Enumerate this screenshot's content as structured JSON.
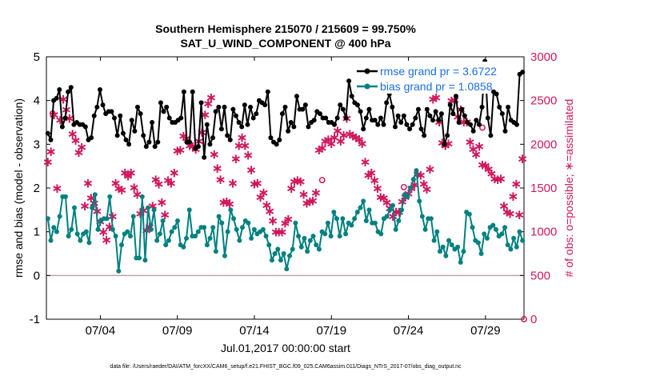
{
  "chart_data": {
    "type": "line",
    "title": "Southern Hemisphere 215070 / 215609 = 99.750%",
    "subtitle": "SAT_U_WIND_COMPONENT @ 400 hPa",
    "xlabel": "Jul.01,2017 00:00:00 start",
    "ylabel": "rmse and bias (model - observation)",
    "y2label": "# of obs: o=possible; ∗=assimilated",
    "footer": "data file: /Users/raeder/DAI/ATM_forcXX/CAM6_setup/f.e21.FHIST_BGC.f09_025.CAM6assim.011/Diags_NTrS_2017-07/obs_diag_output.nc",
    "xlim": [
      0.5,
      31.5
    ],
    "ylim": [
      -1,
      5
    ],
    "y2lim": [
      0,
      3000
    ],
    "xticks": [
      4,
      9,
      14,
      19,
      24,
      29
    ],
    "xticklabels": [
      "07/04",
      "07/09",
      "07/14",
      "07/19",
      "07/24",
      "07/29"
    ],
    "yticks": [
      "-1",
      "0",
      "1",
      "2",
      "3",
      "4",
      "5"
    ],
    "y2ticks": [
      "0",
      "500",
      "1000",
      "1500",
      "2000",
      "2500",
      "3000"
    ],
    "series": [
      {
        "name": "rmse grand pr = 3.6722",
        "color": "#000000",
        "values": [
          3.25,
          3.1,
          4.0,
          4.05,
          4.25,
          3.4,
          3.6,
          4.2,
          4.3,
          3.45,
          3.5,
          3.45,
          3.45,
          3.4,
          3.1,
          3.15,
          3.65,
          3.85,
          4.25,
          3.9,
          3.7,
          3.75,
          3.75,
          3.6,
          3.2,
          3.65,
          3.25,
          3.1,
          3.0,
          3.55,
          3.3,
          3.85,
          3.7,
          3.2,
          2.95,
          3.05,
          3.5,
          2.95,
          3.05,
          3.95,
          3.75,
          3.85,
          3.6,
          3.5,
          3.5,
          3.55,
          3.6,
          4.2,
          3.05,
          3.05,
          4.2,
          2.9,
          2.95,
          3.95,
          2.7,
          3.45,
          3.0,
          3.15,
          3.75,
          3.85,
          3.35,
          3.85,
          3.2,
          3.1,
          3.8,
          3.65,
          3.5,
          3.4,
          3.9,
          3.45,
          3.85,
          3.6,
          3.7,
          4.0,
          3.95,
          3.9,
          4.2,
          3.15,
          3.05,
          3.0,
          3.1,
          3.7,
          3.85,
          3.3,
          3.5,
          3.4,
          4.1,
          3.8,
          3.8,
          3.9,
          3.4,
          3.5,
          3.55,
          3.75,
          3.7,
          3.6,
          3.6,
          3.5,
          3.5,
          3.45,
          3.6,
          3.9,
          3.8,
          3.6,
          4.45,
          4.1,
          3.95,
          3.9,
          3.75,
          3.35,
          3.6,
          3.8,
          3.55,
          3.55,
          3.45,
          3.6,
          3.45,
          3.95,
          4.15,
          3.85,
          3.4,
          3.65,
          3.5,
          3.65,
          3.45,
          3.35,
          3.45,
          3.6,
          3.8,
          3.35,
          3.2,
          3.8,
          3.65,
          3.55,
          3.75,
          3.55,
          3.7,
          3.0,
          3.2,
          3.9,
          3.7,
          4.1,
          3.5,
          3.8,
          3.65,
          3.5,
          3.45,
          3.3,
          3.55,
          3.45,
          3.85,
          4.9,
          3.6,
          3.2,
          4.2,
          4.15,
          3.85,
          3.7,
          3.3,
          3.85,
          3.55,
          3.5,
          3.45,
          4.6,
          4.65
        ]
      },
      {
        "name": "bias grand pr = 1.0858",
        "color": "#008080",
        "values": [
          1.3,
          0.8,
          1.1,
          1.0,
          1.35,
          1.8,
          1.8,
          0.9,
          1.05,
          1.55,
          0.95,
          0.8,
          0.95,
          1.0,
          0.75,
          1.55,
          1.85,
          1.05,
          1.25,
          1.3,
          1.3,
          1.8,
          1.05,
          0.9,
          0.1,
          0.7,
          0.95,
          1.0,
          0.9,
          1.35,
          0.4,
          0.4,
          1.8,
          0.35,
          1.55,
          1.05,
          1.5,
          0.8,
          0.95,
          1.25,
          0.7,
          0.8,
          1.0,
          1.1,
          1.25,
          0.7,
          0.65,
          0.85,
          1.5,
          0.9,
          0.9,
          1.0,
          1.1,
          1.1,
          0.7,
          0.85,
          1.1,
          0.55,
          1.35,
          1.2,
          0.45,
          1.0,
          1.5,
          1.3,
          1.05,
          0.8,
          1.1,
          1.25,
          1.2,
          0.85,
          1.05,
          0.95,
          1.0,
          1.05,
          0.9,
          0.7,
          0.35,
          0.5,
          0.6,
          0.35,
          0.5,
          0.15,
          0.45,
          0.6,
          1.2,
          0.9,
          0.65,
          0.85,
          0.55,
          0.8,
          0.9,
          0.7,
          0.6,
          1.0,
          0.95,
          1.2,
          0.9,
          1.45,
          1.3,
          0.9,
          1.3,
          0.95,
          1.2,
          1.15,
          1.3,
          1.45,
          1.55,
          1.7,
          1.25,
          1.5,
          1.2,
          1.2,
          1.0,
          0.95,
          1.3,
          1.35,
          1.5,
          1.6,
          1.05,
          1.25,
          1.5,
          1.85,
          1.8,
          2.0,
          2.2,
          2.4,
          1.7,
          1.35,
          1.05,
          1.3,
          1.3,
          0.8,
          1.0,
          0.55,
          0.65,
          0.45,
          0.8,
          0.7,
          0.6,
          0.65,
          0.3,
          0.55,
          1.45,
          1.4,
          1.1,
          0.8,
          0.75,
          0.5,
          0.95,
          0.85,
          1.1,
          1.15,
          1.05,
          0.9,
          0.95,
          1.1,
          0.7,
          0.6,
          0.85,
          0.65,
          1.0,
          0.8
        ]
      }
    ],
    "obs_assimilated": {
      "name": "obs assimilated",
      "color": "#d0175c",
      "values": [
        1800,
        1920,
        2340,
        1500,
        2280,
        2520,
        2400,
        2300,
        2120,
        2050,
        1910,
        1970,
        1300,
        1560,
        1390,
        1330,
        1240,
        1120,
        1000,
        910,
        1060,
        1180,
        1560,
        1500,
        1480,
        1680,
        1640,
        1680,
        1510,
        1430,
        1210,
        1250,
        1020,
        1060,
        1300,
        1600,
        1550,
        1340,
        1200,
        1590,
        1560,
        1680,
        1930,
        1940,
        2100,
        2070,
        1990,
        1980,
        1950,
        2040,
        2140,
        2340,
        2470,
        2540,
        1890,
        1730,
        1600,
        1340,
        1350,
        1320,
        1560,
        1840,
        1990,
        2080,
        1990,
        1880,
        1710,
        1550,
        1560,
        1400,
        1450,
        1310,
        1240,
        1130,
        1000,
        1000,
        1000,
        1100,
        1150,
        1500,
        1580,
        1590,
        1580,
        1430,
        1330,
        1350,
        1360,
        1450,
        1940,
        1960,
        2040,
        2060,
        2010,
        2080,
        2160,
        2040,
        2110,
        2300,
        2120,
        2100,
        2080,
        2060,
        2010,
        1800,
        1650,
        1680,
        1590,
        1500,
        1400,
        1390,
        1340,
        1270,
        1180,
        1230,
        1230,
        1350,
        1400,
        1440,
        1500,
        1540,
        1660,
        1650,
        1550,
        1490,
        1720,
        2520,
        2540,
        2260,
        2020,
        1990,
        2010,
        2500,
        2510,
        2320,
        2400,
        2260,
        2260,
        2030,
        1950,
        1890,
        1980,
        1770,
        1760,
        1720,
        1670,
        1610,
        1600,
        1610,
        1300,
        1230,
        1210,
        1410,
        1550,
        1200,
        1840
      ]
    },
    "obs_possible": {
      "name": "obs possible",
      "color": "#d0175c",
      "values": [
        {
          "x": 0.9,
          "y": 2350
        },
        {
          "x": 18.4,
          "y": 1590
        },
        {
          "x": 23.7,
          "y": 1510
        },
        {
          "x": 28.8,
          "y": 2190
        },
        {
          "x": 31.5,
          "y": 0
        }
      ]
    },
    "zero_line_color": "#c8a0a8"
  }
}
